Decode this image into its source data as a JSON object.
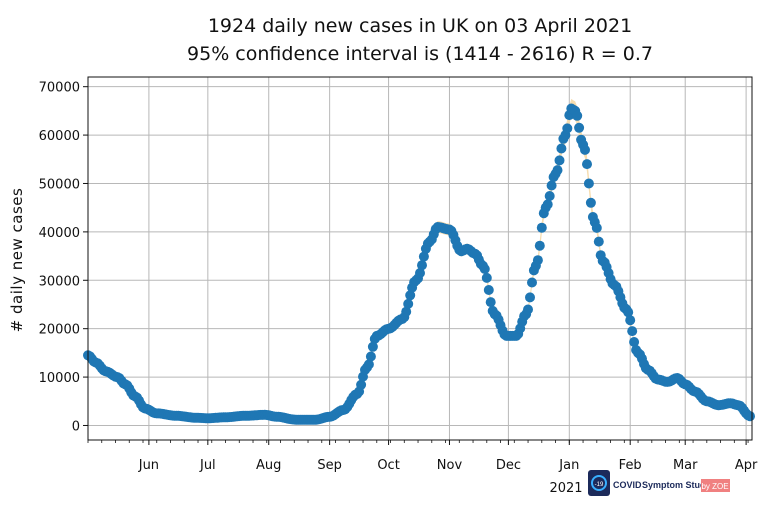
{
  "chart_data": {
    "type": "scatter",
    "title_line1": "1924 daily new cases in UK on 03 April 2021",
    "title_line2": "95% confidence interval is (1414 - 2616) R = 0.7",
    "ylabel": "# daily new cases",
    "ylim": [
      -3000,
      72000
    ],
    "yticks": [
      0,
      10000,
      20000,
      30000,
      40000,
      50000,
      60000,
      70000
    ],
    "x_start": "2020-05-01",
    "x_end": "2021-04-04",
    "x_ticks": [
      {
        "date": "2020-06-01",
        "label": "Jun"
      },
      {
        "date": "2020-07-01",
        "label": "Jul"
      },
      {
        "date": "2020-08-01",
        "label": "Aug"
      },
      {
        "date": "2020-09-01",
        "label": "Sep"
      },
      {
        "date": "2020-10-01",
        "label": "Oct"
      },
      {
        "date": "2020-11-01",
        "label": "Nov"
      },
      {
        "date": "2020-12-01",
        "label": "Dec"
      },
      {
        "date": "2021-01-01",
        "label": "Jan"
      },
      {
        "date": "2021-02-01",
        "label": "Feb"
      },
      {
        "date": "2021-03-01",
        "label": "Mar"
      },
      {
        "date": "2021-04-01",
        "label": "Apr"
      }
    ],
    "year_label": "2021",
    "grid": true,
    "series": [
      {
        "color": "#1f77b4",
        "band_color": "#f6ddb0",
        "anchors": [
          [
            "2020-05-01",
            14500
          ],
          [
            "2020-05-05",
            13000
          ],
          [
            "2020-05-10",
            11200
          ],
          [
            "2020-05-16",
            10000
          ],
          [
            "2020-05-20",
            8500
          ],
          [
            "2020-05-25",
            6000
          ],
          [
            "2020-05-30",
            3500
          ],
          [
            "2020-06-05",
            2500
          ],
          [
            "2020-06-15",
            2000
          ],
          [
            "2020-06-25",
            1600
          ],
          [
            "2020-07-01",
            1500
          ],
          [
            "2020-07-10",
            1700
          ],
          [
            "2020-07-20",
            2000
          ],
          [
            "2020-07-30",
            2200
          ],
          [
            "2020-08-05",
            1800
          ],
          [
            "2020-08-15",
            1200
          ],
          [
            "2020-08-25",
            1200
          ],
          [
            "2020-09-01",
            1800
          ],
          [
            "2020-09-08",
            3200
          ],
          [
            "2020-09-15",
            6500
          ],
          [
            "2020-09-20",
            12000
          ],
          [
            "2020-09-25",
            18500
          ],
          [
            "2020-10-01",
            20000
          ],
          [
            "2020-10-08",
            22000
          ],
          [
            "2020-10-15",
            30000
          ],
          [
            "2020-10-22",
            38000
          ],
          [
            "2020-10-26",
            41000
          ],
          [
            "2020-11-01",
            40500
          ],
          [
            "2020-11-07",
            36000
          ],
          [
            "2020-11-10",
            36500
          ],
          [
            "2020-11-14",
            35500
          ],
          [
            "2020-11-18",
            33000
          ],
          [
            "2020-11-24",
            23000
          ],
          [
            "2020-11-30",
            18500
          ],
          [
            "2020-12-05",
            18500
          ],
          [
            "2020-12-10",
            23000
          ],
          [
            "2020-12-15",
            33000
          ],
          [
            "2020-12-20",
            45000
          ],
          [
            "2020-12-25",
            52000
          ],
          [
            "2020-12-30",
            60000
          ],
          [
            "2021-01-02",
            65500
          ],
          [
            "2021-01-04",
            65000
          ],
          [
            "2021-01-08",
            58000
          ],
          [
            "2021-01-14",
            42000
          ],
          [
            "2021-01-18",
            34000
          ],
          [
            "2021-01-24",
            29000
          ],
          [
            "2021-01-30",
            24000
          ],
          [
            "2021-02-05",
            15000
          ],
          [
            "2021-02-10",
            11500
          ],
          [
            "2021-02-15",
            9500
          ],
          [
            "2021-02-20",
            9000
          ],
          [
            "2021-02-25",
            9800
          ],
          [
            "2021-03-01",
            8500
          ],
          [
            "2021-03-06",
            7000
          ],
          [
            "2021-03-12",
            5000
          ],
          [
            "2021-03-18",
            4200
          ],
          [
            "2021-03-24",
            4600
          ],
          [
            "2021-03-28",
            4200
          ],
          [
            "2021-04-03",
            1924
          ]
        ]
      }
    ]
  },
  "logo": {
    "brand_left": "COVID",
    "brand_right": "Symptom Study",
    "partner": "by ZOE",
    "icon_text": "-19"
  }
}
